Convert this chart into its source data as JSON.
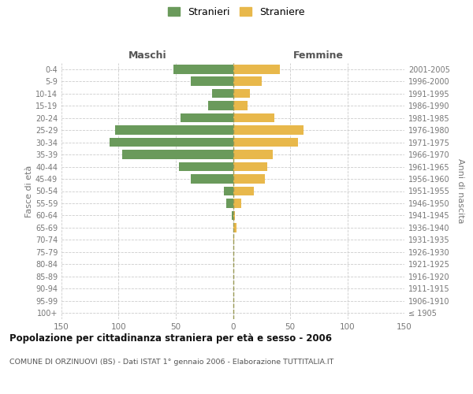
{
  "age_groups": [
    "100+",
    "95-99",
    "90-94",
    "85-89",
    "80-84",
    "75-79",
    "70-74",
    "65-69",
    "60-64",
    "55-59",
    "50-54",
    "45-49",
    "40-44",
    "35-39",
    "30-34",
    "25-29",
    "20-24",
    "15-19",
    "10-14",
    "5-9",
    "0-4"
  ],
  "birth_years": [
    "≤ 1905",
    "1906-1910",
    "1911-1915",
    "1916-1920",
    "1921-1925",
    "1926-1930",
    "1931-1935",
    "1936-1940",
    "1941-1945",
    "1946-1950",
    "1951-1955",
    "1956-1960",
    "1961-1965",
    "1966-1970",
    "1971-1975",
    "1976-1980",
    "1981-1985",
    "1986-1990",
    "1991-1995",
    "1996-2000",
    "2001-2005"
  ],
  "maschi": [
    0,
    0,
    0,
    0,
    0,
    0,
    0,
    0,
    1,
    6,
    8,
    37,
    47,
    97,
    108,
    103,
    46,
    22,
    18,
    37,
    52
  ],
  "femmine": [
    0,
    0,
    0,
    0,
    0,
    0,
    1,
    3,
    2,
    7,
    18,
    28,
    30,
    35,
    57,
    62,
    36,
    13,
    15,
    25,
    41
  ],
  "maschi_color": "#6a9a5b",
  "femmine_color": "#e8b84b",
  "title": "Popolazione per cittadinanza straniera per età e sesso - 2006",
  "subtitle": "COMUNE DI ORZINUOVI (BS) - Dati ISTAT 1° gennaio 2006 - Elaborazione TUTTITALIA.IT",
  "ylabel_left": "Fasce di età",
  "ylabel_right": "Anni di nascita",
  "xlabel_left": "Maschi",
  "xlabel_right": "Femmine",
  "legend_stranieri": "Stranieri",
  "legend_straniere": "Straniere",
  "xlim": 150,
  "background_color": "#ffffff"
}
